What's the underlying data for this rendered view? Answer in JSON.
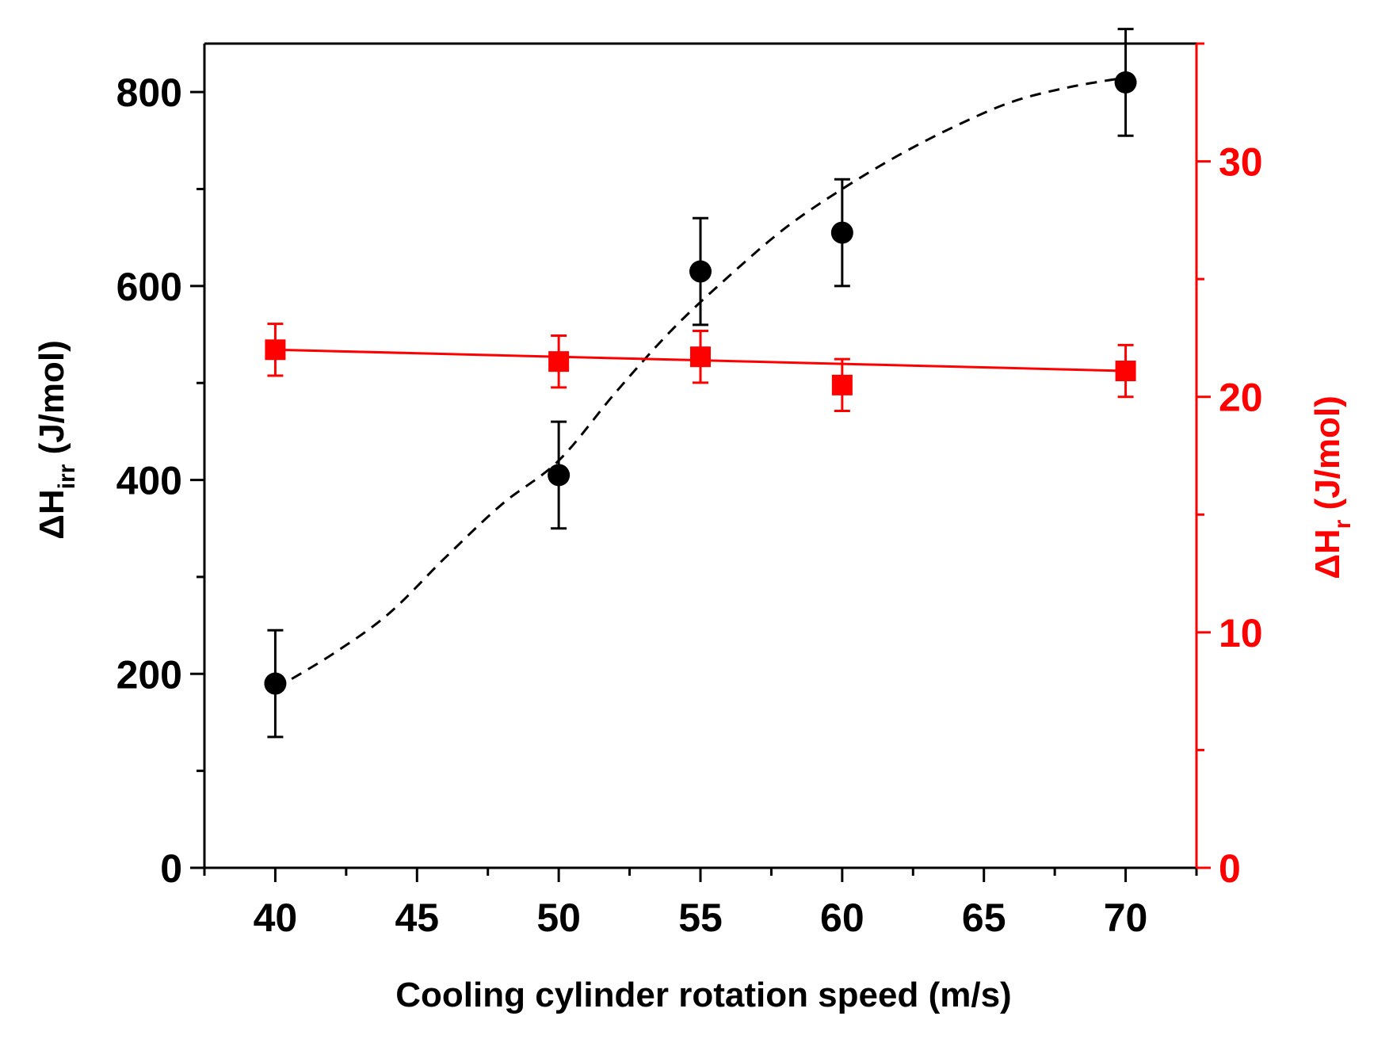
{
  "chart_data": {
    "type": "scatter",
    "title": "",
    "xlabel": "Cooling cylinder rotation speed (m/s)",
    "ylabel_left": {
      "main": "ΔH",
      "sub": "irr",
      "unit": " (J/mol)"
    },
    "ylabel_right": {
      "main": "ΔH",
      "sub": "r",
      "unit": " (J/mol)"
    },
    "xlim": [
      37.5,
      72.5
    ],
    "ylim_left": [
      0,
      850
    ],
    "ylim_right": [
      0,
      35
    ],
    "x_ticks": [
      40,
      45,
      50,
      55,
      60,
      65,
      70
    ],
    "x_tick_labels": [
      "40",
      "45",
      "50",
      "55",
      "60",
      "65",
      "70"
    ],
    "y_left_ticks": [
      0,
      200,
      400,
      600,
      800
    ],
    "y_left_tick_labels": [
      "0",
      "200",
      "400",
      "600",
      "800"
    ],
    "y_right_ticks": [
      0,
      10,
      20,
      30
    ],
    "y_right_tick_labels": [
      "0",
      "10",
      "20",
      "30"
    ],
    "series": [
      {
        "name": "ΔH_irr",
        "axis": "left",
        "marker": "circle",
        "color": "#000000",
        "x": [
          40,
          50,
          55,
          60,
          70
        ],
        "y": [
          190,
          405,
          615,
          655,
          810
        ],
        "err": [
          55,
          55,
          55,
          55,
          55
        ],
        "fit": {
          "style": "dashed",
          "x": [
            40,
            42,
            44,
            46,
            48,
            50,
            52,
            54,
            56,
            58,
            60,
            62,
            64,
            66,
            68,
            70
          ],
          "y": [
            185,
            220,
            262,
            320,
            375,
            420,
            490,
            555,
            610,
            660,
            700,
            735,
            765,
            790,
            805,
            815
          ]
        }
      },
      {
        "name": "ΔH_r",
        "axis": "right",
        "marker": "square",
        "color": "#ff0000",
        "x": [
          40,
          50,
          55,
          60,
          70
        ],
        "y": [
          22.0,
          21.5,
          21.7,
          20.5,
          21.1
        ],
        "err": [
          1.1,
          1.1,
          1.1,
          1.1,
          1.1
        ],
        "fit": {
          "style": "solid",
          "x": [
            40,
            70
          ],
          "y": [
            22.0,
            21.1
          ]
        }
      }
    ]
  }
}
